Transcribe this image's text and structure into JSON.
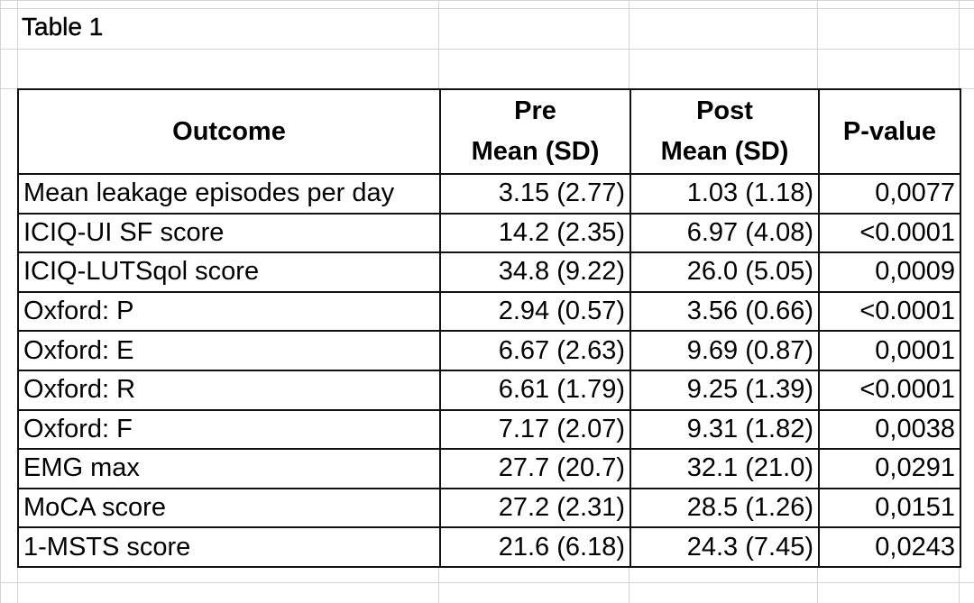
{
  "caption": "Table 1",
  "table": {
    "headers": {
      "outcome": "Outcome",
      "pre_line1": "Pre",
      "pre_line2": "Mean (SD)",
      "post_line1": "Post",
      "post_line2": "Mean (SD)",
      "pvalue": "P-value"
    },
    "rows": [
      {
        "outcome": "Mean leakage episodes per day",
        "pre": "3.15 (2.77)",
        "post": "1.03 (1.18)",
        "p": "0,0077"
      },
      {
        "outcome": "ICIQ-UI SF score",
        "pre": "14.2 (2.35)",
        "post": "6.97 (4.08)",
        "p": "<0.0001"
      },
      {
        "outcome": "ICIQ-LUTSqol score",
        "pre": "34.8 (9.22)",
        "post": "26.0 (5.05)",
        "p": "0,0009"
      },
      {
        "outcome": "Oxford: P",
        "pre": "2.94 (0.57)",
        "post": "3.56 (0.66)",
        "p": "<0.0001"
      },
      {
        "outcome": "Oxford: E",
        "pre": "6.67 (2.63)",
        "post": "9.69 (0.87)",
        "p": "0,0001"
      },
      {
        "outcome": "Oxford: R",
        "pre": "6.61 (1.79)",
        "post": "9.25 (1.39)",
        "p": "<0.0001"
      },
      {
        "outcome": "Oxford: F",
        "pre": "7.17 (2.07)",
        "post": "9.31 (1.82)",
        "p": "0,0038"
      },
      {
        "outcome": "EMG max",
        "pre": "27.7 (20.7)",
        "post": "32.1 (21.0)",
        "p": "0,0291"
      },
      {
        "outcome": "MoCA score",
        "pre": "27.2 (2.31)",
        "post": "28.5 (1.26)",
        "p": "0,0151"
      },
      {
        "outcome": "1-MSTS score",
        "pre": "21.6 (6.18)",
        "post": "24.3 (7.45)",
        "p": "0,0243"
      }
    ]
  },
  "colors": {
    "gridline": "#d4d4d4",
    "border": "#111111",
    "background": "#ffffff"
  }
}
